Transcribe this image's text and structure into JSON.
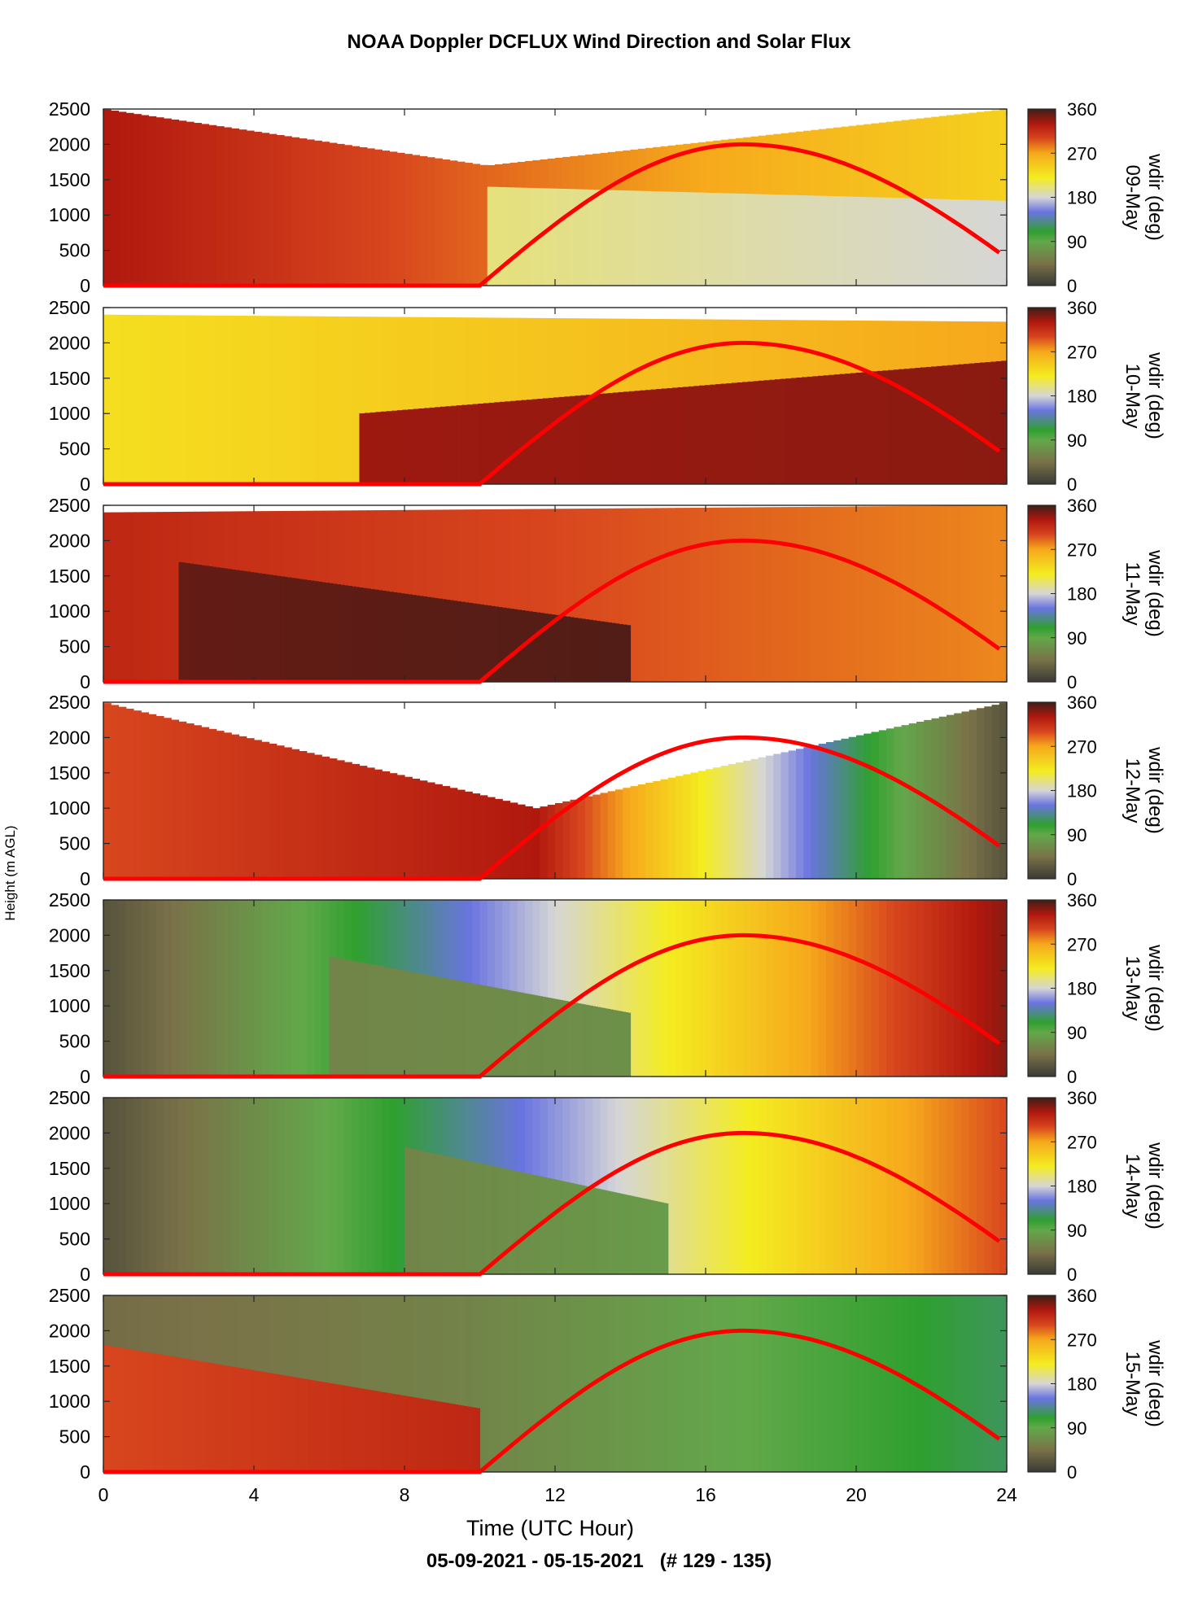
{
  "title": "NOAA Doppler DCFLUX Wind Direction and Solar Flux",
  "footer": "05-09-2021 - 05-15-2021   (# 129 - 135)",
  "chart_data": {
    "type": "heatmap",
    "xlabel": "Time (UTC Hour)",
    "ylabel": "Height (m AGL)",
    "xlim": [
      0,
      24
    ],
    "ylim": [
      0,
      2500
    ],
    "xticks": [
      0,
      4,
      8,
      12,
      16,
      20,
      24
    ],
    "yticks": [
      0,
      500,
      1000,
      1500,
      2000,
      2500
    ],
    "colorbar_label": "wdir (deg)",
    "colorbar_ticks": [
      0,
      90,
      180,
      270,
      360
    ],
    "colorbar_range": [
      0,
      360
    ],
    "colormap": [
      {
        "v": 0,
        "color": "#3a3a34"
      },
      {
        "v": 45,
        "color": "#7a7248"
      },
      {
        "v": 90,
        "color": "#62a84a"
      },
      {
        "v": 110,
        "color": "#2fa02f"
      },
      {
        "v": 150,
        "color": "#6a74e0"
      },
      {
        "v": 180,
        "color": "#d6d6d6"
      },
      {
        "v": 220,
        "color": "#f4ec20"
      },
      {
        "v": 270,
        "color": "#f6a81c"
      },
      {
        "v": 300,
        "color": "#d8461e"
      },
      {
        "v": 330,
        "color": "#b0180e"
      },
      {
        "v": 360,
        "color": "#3e1e18"
      }
    ],
    "solar_flux_curve": {
      "color": "#ff0000",
      "sunrise_hour": 10,
      "peak_hour": 17,
      "sunset_hour": 23.8,
      "peak_height": 2000
    },
    "panels": [
      {
        "day": "09-May",
        "layers": [
          {
            "t": [
              0,
              10.2,
              24
            ],
            "h_top": [
              2500,
              1700,
              2500
            ],
            "dir": [
              330,
              290,
              240
            ]
          },
          {
            "t": [
              10.2,
              24
            ],
            "h_top": [
              1400,
              1200
            ],
            "dir": [
              200,
              180
            ]
          }
        ]
      },
      {
        "day": "10-May",
        "layers": [
          {
            "t": [
              0,
              24
            ],
            "h_top": [
              2400,
              2300
            ],
            "dir": [
              230,
              270
            ]
          },
          {
            "t": [
              6.8,
              24
            ],
            "h_top": [
              1000,
              1750
            ],
            "dir": [
              335,
              340
            ]
          }
        ]
      },
      {
        "day": "11-May",
        "layers": [
          {
            "t": [
              0,
              24
            ],
            "h_top": [
              2400,
              2500
            ],
            "dir": [
              320,
              280
            ]
          },
          {
            "t": [
              2,
              14
            ],
            "h_top": [
              1700,
              800
            ],
            "dir": [
              350,
              355
            ]
          }
        ]
      },
      {
        "day": "12-May",
        "layers": [
          {
            "t": [
              0,
              11.5,
              24
            ],
            "h_top": [
              2500,
              1000,
              2500
            ],
            "dir": [
              300,
              330,
              20
            ]
          }
        ]
      },
      {
        "day": "13-May",
        "layers": [
          {
            "t": [
              0,
              24
            ],
            "h_top": [
              2500,
              2500
            ],
            "dir": [
              20,
              340
            ]
          },
          {
            "t": [
              6,
              14
            ],
            "h_top": [
              1700,
              900
            ],
            "dir": [
              60,
              70
            ]
          }
        ]
      },
      {
        "day": "14-May",
        "layers": [
          {
            "t": [
              0,
              24
            ],
            "h_top": [
              2500,
              2500
            ],
            "dir": [
              20,
              300
            ]
          },
          {
            "t": [
              8,
              15
            ],
            "h_top": [
              1800,
              1000
            ],
            "dir": [
              60,
              80
            ]
          }
        ]
      },
      {
        "day": "15-May",
        "layers": [
          {
            "t": [
              0,
              10,
              24
            ],
            "h_top": [
              2500,
              2500,
              2500
            ],
            "dir": [
              40,
              60,
              120
            ]
          },
          {
            "t": [
              0,
              10
            ],
            "h_top": [
              1800,
              900
            ],
            "dir": [
              300,
              320
            ]
          }
        ]
      }
    ]
  }
}
